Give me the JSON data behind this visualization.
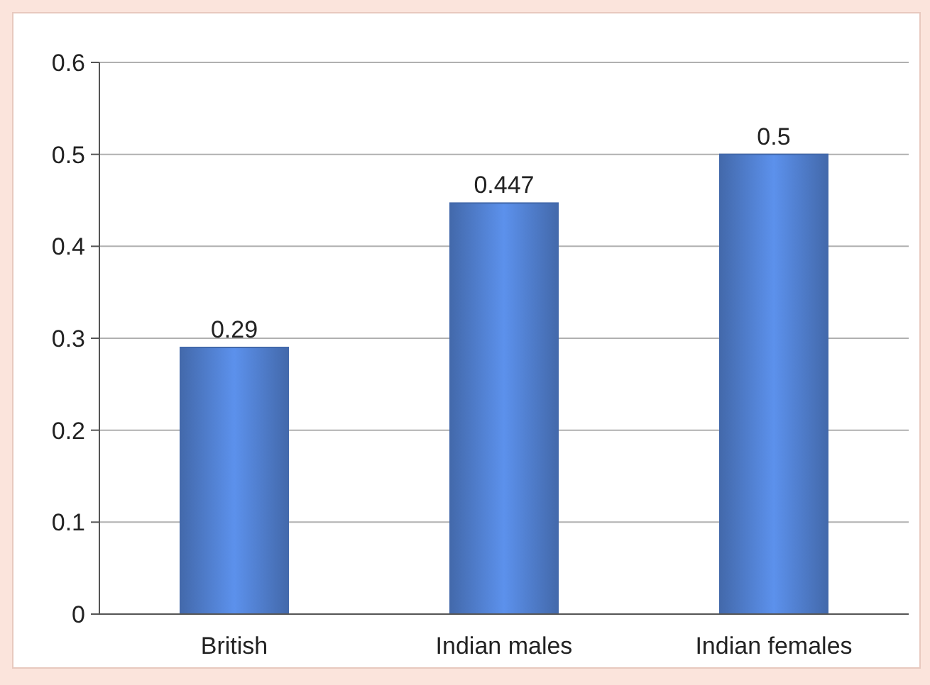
{
  "chart_data": {
    "type": "bar",
    "categories": [
      "British",
      "Indian males",
      "Indian females"
    ],
    "values": [
      0.29,
      0.447,
      0.5
    ],
    "color": "#4369ab",
    "ylim": [
      0,
      0.6
    ],
    "yticks": [
      0,
      0.1,
      0.2,
      0.3,
      0.4,
      0.5,
      0.6
    ],
    "grid": "y",
    "data_labels": true
  }
}
